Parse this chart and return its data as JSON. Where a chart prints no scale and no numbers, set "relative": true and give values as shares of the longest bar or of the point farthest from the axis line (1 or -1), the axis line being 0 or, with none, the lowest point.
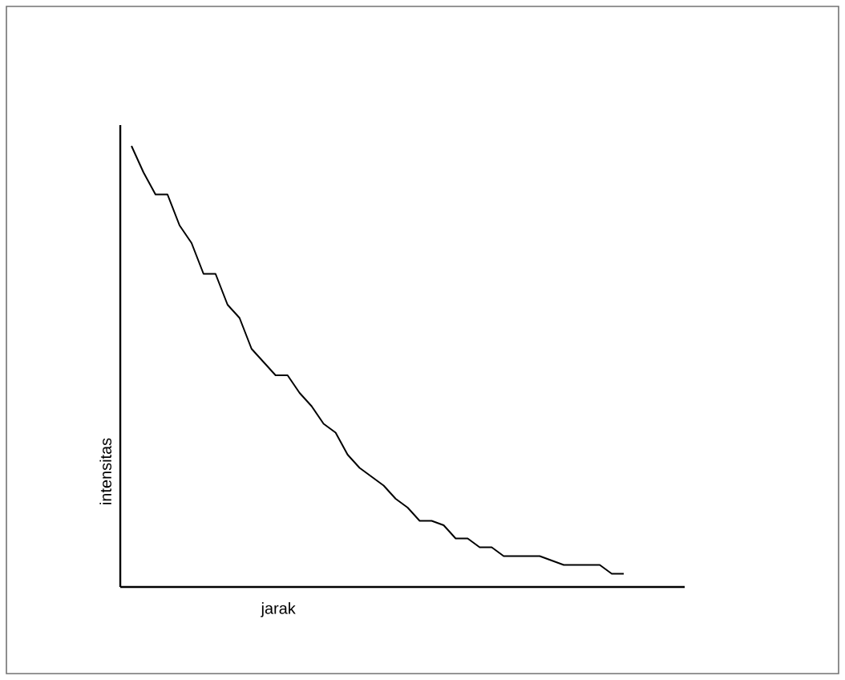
{
  "chart_data": {
    "type": "line",
    "relative": true,
    "xlabel": "jarak",
    "ylabel": "intensitas",
    "color": "#000000",
    "categories": [
      null,
      null,
      null,
      null,
      null,
      null,
      null,
      null,
      null,
      null,
      null,
      null,
      null,
      null,
      null,
      null,
      null,
      null,
      null,
      null,
      null,
      null,
      null,
      null,
      null,
      null,
      null,
      null,
      null,
      null,
      null,
      null,
      null,
      null,
      null,
      null,
      null,
      null,
      null,
      null,
      null,
      null
    ],
    "values": [
      1.0,
      0.94,
      0.89,
      0.89,
      0.82,
      0.78,
      0.71,
      0.71,
      0.64,
      0.61,
      0.54,
      0.51,
      0.48,
      0.48,
      0.44,
      0.41,
      0.37,
      0.35,
      0.3,
      0.27,
      0.25,
      0.23,
      0.2,
      0.18,
      0.15,
      0.15,
      0.14,
      0.11,
      0.11,
      0.09,
      0.09,
      0.07,
      0.07,
      0.07,
      0.07,
      0.06,
      0.05,
      0.05,
      0.05,
      0.05,
      0.03,
      0.03
    ]
  }
}
